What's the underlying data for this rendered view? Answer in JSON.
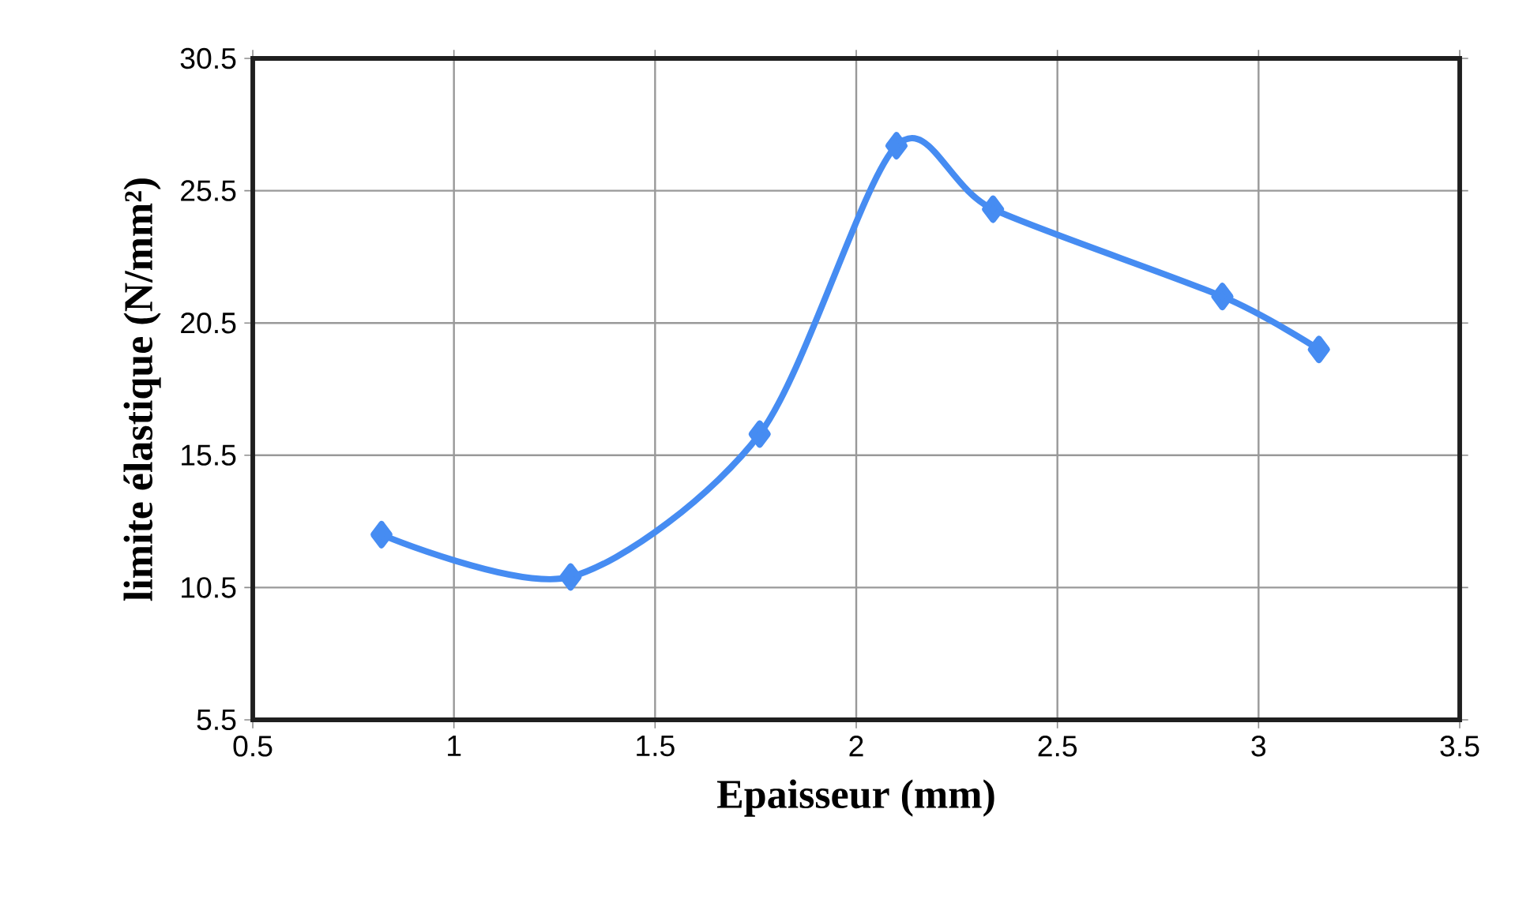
{
  "chart_data": {
    "type": "line",
    "xlabel": "Epaisseur (mm)",
    "ylabel": "limite élastique (N/mm²)",
    "x": [
      0.82,
      1.29,
      1.76,
      2.1,
      2.34,
      2.91,
      3.15
    ],
    "series": [
      {
        "color": "#468cf2",
        "values": [
          12.5,
          10.9,
          16.3,
          27.2,
          24.8,
          21.5,
          19.5
        ]
      }
    ],
    "xlim": [
      0.5,
      3.5
    ],
    "xticks": [
      0.5,
      1,
      1.5,
      2,
      2.5,
      3,
      3.5
    ],
    "ylim": [
      5.5,
      30.5
    ],
    "yticks": [
      5.5,
      10.5,
      15.5,
      20.5,
      25.5,
      30.5
    ],
    "grid": true,
    "marker": "diamond",
    "line_style": "solid"
  }
}
